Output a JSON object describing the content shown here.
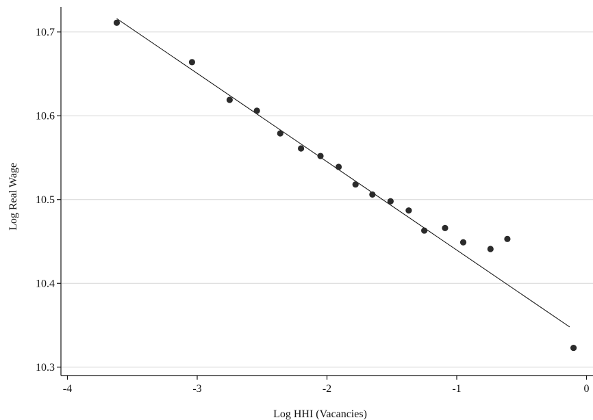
{
  "chart_data": {
    "type": "scatter",
    "title": "",
    "xlabel": "Log HHI (Vacancies)",
    "ylabel": "Log Real Wage",
    "xlim": [
      -4.05,
      0.05
    ],
    "ylim": [
      10.29,
      10.73
    ],
    "xticks": [
      -4,
      -3,
      -2,
      -1,
      0
    ],
    "xtick_labels": [
      "-4",
      "-3",
      "-2",
      "-1",
      "0"
    ],
    "yticks": [
      10.3,
      10.4,
      10.5,
      10.6,
      10.7
    ],
    "ytick_labels": [
      "10.3",
      "10.4",
      "10.5",
      "10.6",
      "10.7"
    ],
    "grid": "horizontal",
    "legend": "none",
    "points": [
      {
        "x": -3.62,
        "y": 10.711
      },
      {
        "x": -3.04,
        "y": 10.664
      },
      {
        "x": -2.75,
        "y": 10.619
      },
      {
        "x": -2.54,
        "y": 10.606
      },
      {
        "x": -2.36,
        "y": 10.579
      },
      {
        "x": -2.2,
        "y": 10.561
      },
      {
        "x": -2.05,
        "y": 10.552
      },
      {
        "x": -1.91,
        "y": 10.539
      },
      {
        "x": -1.78,
        "y": 10.518
      },
      {
        "x": -1.65,
        "y": 10.506
      },
      {
        "x": -1.51,
        "y": 10.498
      },
      {
        "x": -1.37,
        "y": 10.487
      },
      {
        "x": -1.25,
        "y": 10.463
      },
      {
        "x": -1.09,
        "y": 10.466
      },
      {
        "x": -0.95,
        "y": 10.449
      },
      {
        "x": -0.74,
        "y": 10.441
      },
      {
        "x": -0.61,
        "y": 10.453
      },
      {
        "x": -0.1,
        "y": 10.323
      }
    ],
    "fit_line": [
      {
        "x": -3.62,
        "y": 10.716
      },
      {
        "x": -0.13,
        "y": 10.348
      }
    ],
    "colors": {
      "points": "#2b2b2b",
      "line": "#1a1a1a",
      "grid": "#d6d6d6",
      "axis": "#111111"
    }
  }
}
